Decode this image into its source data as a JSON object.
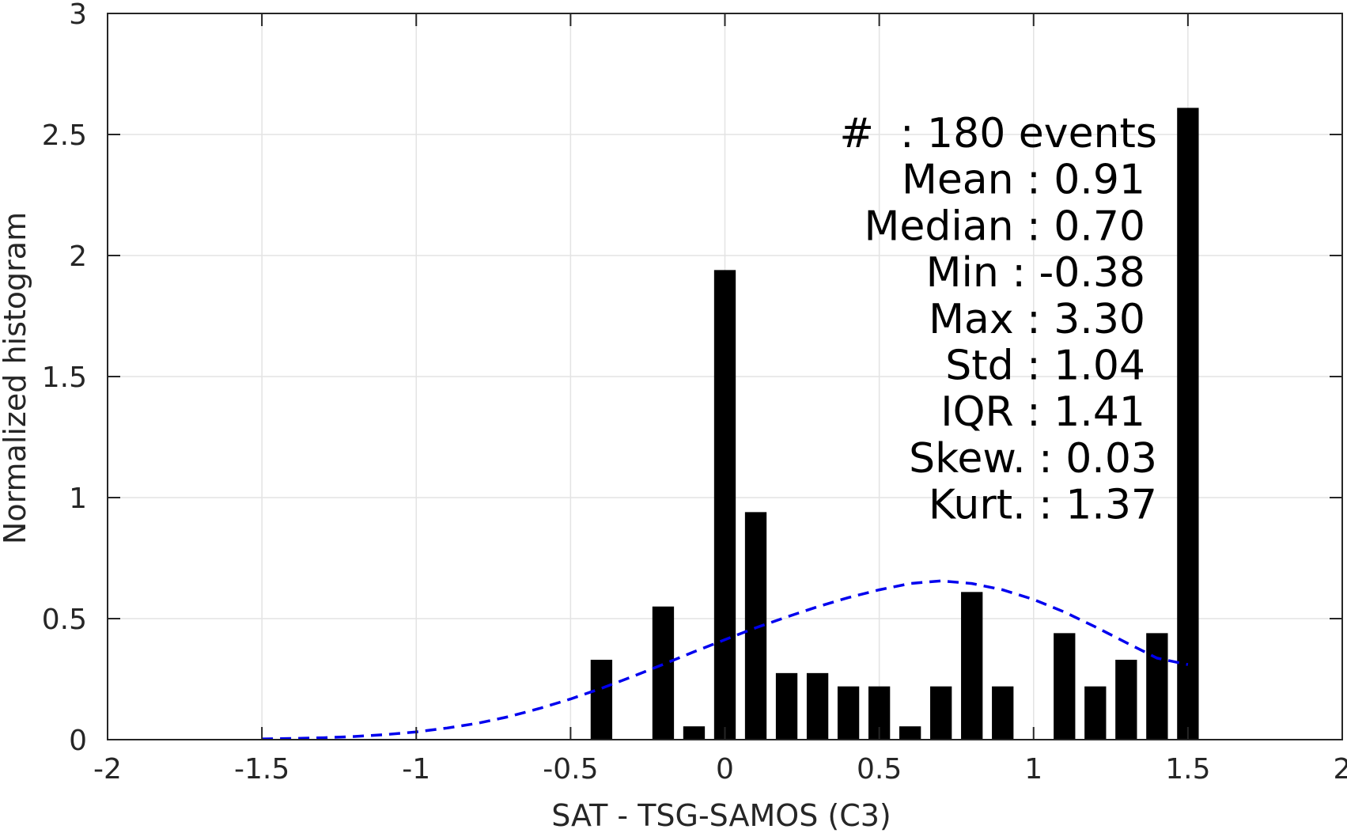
{
  "chart_data": {
    "type": "bar",
    "xlabel": "SAT - TSG-SAMOS (C3)",
    "ylabel": "Normalized histogram",
    "xlim": [
      -2,
      2
    ],
    "ylim": [
      0,
      3
    ],
    "xticks": [
      -2,
      -1.5,
      -1,
      -0.5,
      0,
      0.5,
      1,
      1.5,
      2
    ],
    "xtick_labels": [
      "-2",
      "-1.5",
      "-1",
      "-0.5",
      "0",
      "0.5",
      "1",
      "1.5",
      "2"
    ],
    "yticks": [
      0,
      0.5,
      1,
      1.5,
      2,
      2.5,
      3
    ],
    "ytick_labels": [
      "0",
      "0.5",
      "1",
      "1.5",
      "2",
      "2.5",
      "3"
    ],
    "grid": true,
    "bin_width": 0.07,
    "bars": [
      {
        "x": -0.4,
        "y": 0.33
      },
      {
        "x": -0.2,
        "y": 0.55
      },
      {
        "x": -0.1,
        "y": 0.055
      },
      {
        "x": 0.0,
        "y": 1.94
      },
      {
        "x": 0.1,
        "y": 0.94
      },
      {
        "x": 0.2,
        "y": 0.275
      },
      {
        "x": 0.3,
        "y": 0.275
      },
      {
        "x": 0.4,
        "y": 0.22
      },
      {
        "x": 0.5,
        "y": 0.22
      },
      {
        "x": 0.6,
        "y": 0.055
      },
      {
        "x": 0.7,
        "y": 0.22
      },
      {
        "x": 0.8,
        "y": 0.61
      },
      {
        "x": 0.9,
        "y": 0.22
      },
      {
        "x": 1.1,
        "y": 0.44
      },
      {
        "x": 1.2,
        "y": 0.22
      },
      {
        "x": 1.3,
        "y": 0.33
      },
      {
        "x": 1.4,
        "y": 0.44
      },
      {
        "x": 1.5,
        "y": 2.61
      }
    ],
    "bar_color": "#000000",
    "fit_curve": {
      "style": "dashed",
      "color": "#0000ee",
      "points": [
        [
          -1.5,
          0.003
        ],
        [
          -1.4,
          0.005
        ],
        [
          -1.3,
          0.008
        ],
        [
          -1.2,
          0.013
        ],
        [
          -1.1,
          0.021
        ],
        [
          -1.0,
          0.032
        ],
        [
          -0.9,
          0.048
        ],
        [
          -0.8,
          0.068
        ],
        [
          -0.7,
          0.095
        ],
        [
          -0.6,
          0.129
        ],
        [
          -0.5,
          0.168
        ],
        [
          -0.4,
          0.212
        ],
        [
          -0.3,
          0.26
        ],
        [
          -0.2,
          0.311
        ],
        [
          -0.1,
          0.363
        ],
        [
          0.0,
          0.413
        ],
        [
          0.1,
          0.462
        ],
        [
          0.2,
          0.507
        ],
        [
          0.3,
          0.549
        ],
        [
          0.4,
          0.587
        ],
        [
          0.5,
          0.619
        ],
        [
          0.6,
          0.645
        ],
        [
          0.7,
          0.656
        ],
        [
          0.8,
          0.645
        ],
        [
          0.9,
          0.619
        ],
        [
          1.0,
          0.579
        ],
        [
          1.1,
          0.527
        ],
        [
          1.2,
          0.466
        ],
        [
          1.3,
          0.401
        ],
        [
          1.4,
          0.337
        ],
        [
          1.5,
          0.31
        ]
      ]
    },
    "stats": [
      {
        "label": "#  : 180 events"
      },
      {
        "label": "Mean : 0.91"
      },
      {
        "label": "Median : 0.70"
      },
      {
        "label": "Min : -0.38"
      },
      {
        "label": "Max : 3.30"
      },
      {
        "label": "Std : 1.04"
      },
      {
        "label": "IQR : 1.41"
      },
      {
        "label": "Skew. : 0.03"
      },
      {
        "label": "Kurt. : 1.37"
      }
    ]
  }
}
